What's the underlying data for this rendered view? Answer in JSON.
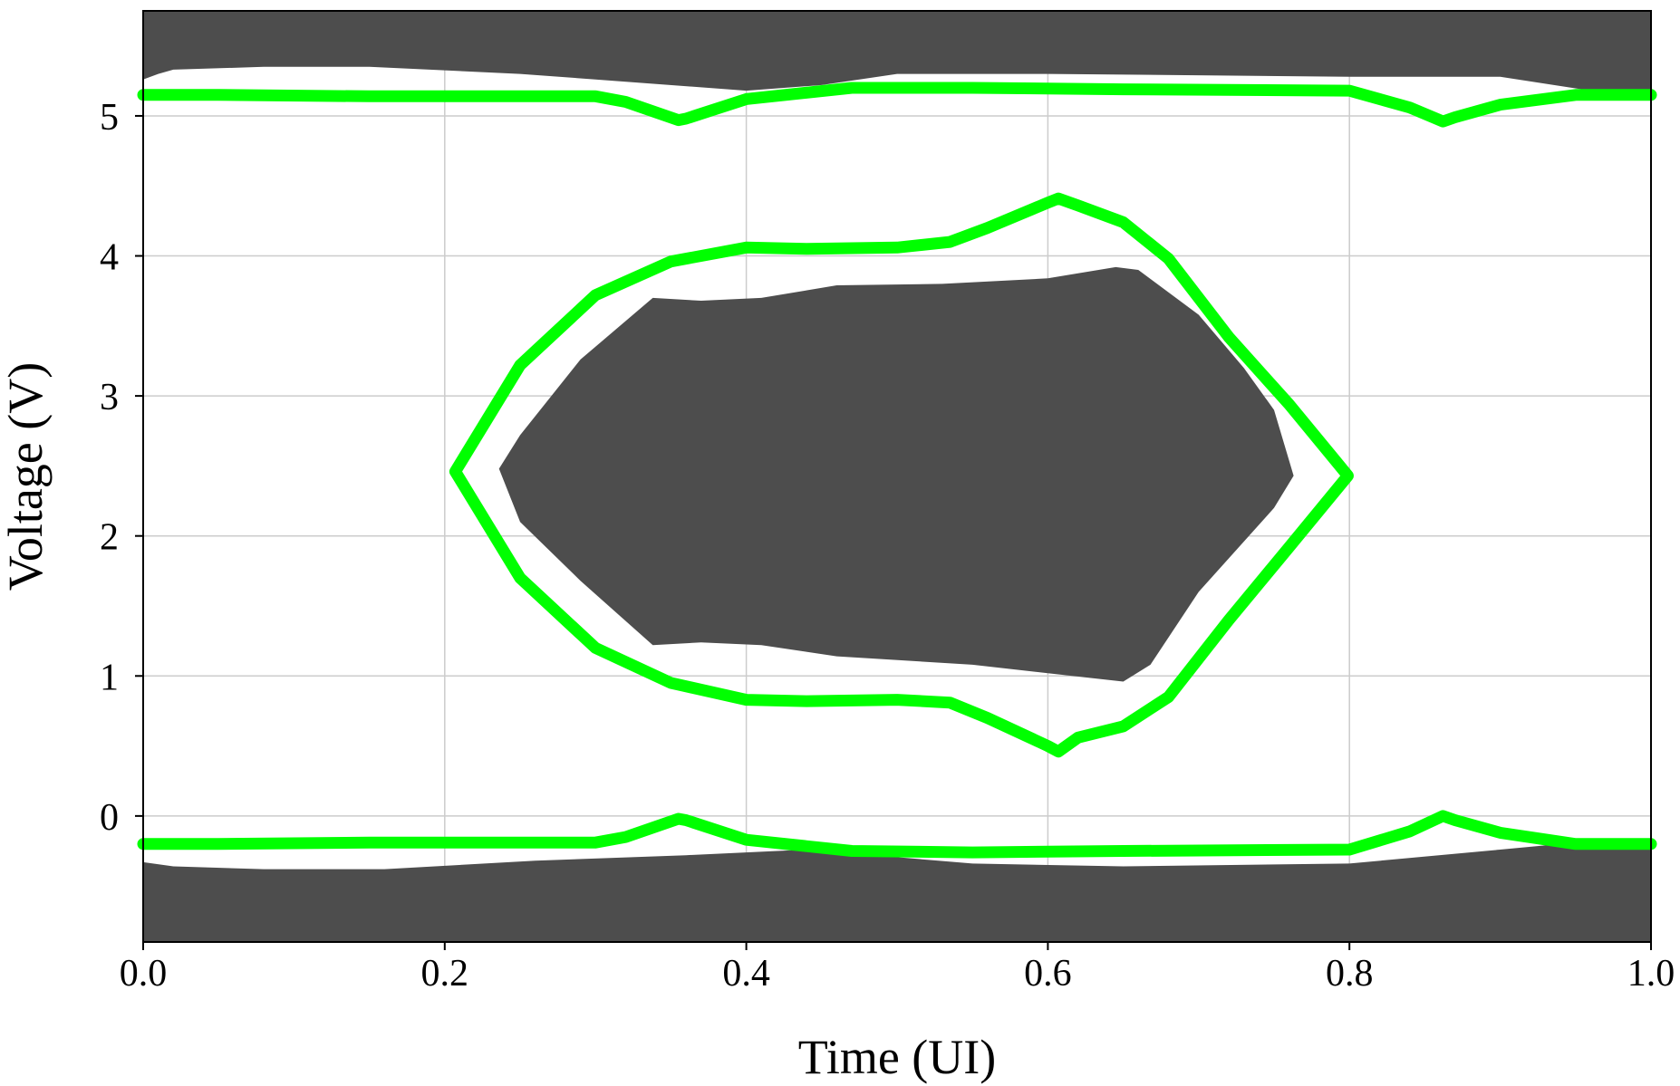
{
  "chart_data": {
    "type": "line",
    "title": "",
    "xlabel": "Time (UI)",
    "ylabel": "Voltage (V)",
    "xlim": [
      0.0,
      1.0
    ],
    "ylim": [
      -0.9,
      5.75
    ],
    "x_ticks": [
      0.0,
      0.2,
      0.4,
      0.6,
      0.8,
      1.0
    ],
    "x_tick_labels": [
      "0.0",
      "0.2",
      "0.4",
      "0.6",
      "0.8",
      "1.0"
    ],
    "y_ticks": [
      0,
      1,
      2,
      3,
      4,
      5
    ],
    "y_tick_labels": [
      "0",
      "1",
      "2",
      "3",
      "4",
      "5"
    ],
    "grid": true,
    "legend": "none",
    "colors": {
      "mask": "#4d4d4d",
      "contour": "#00ff00",
      "grid": "#cccccc",
      "frame": "#000000"
    },
    "masks": [
      {
        "region": "top",
        "points": [
          [
            0,
            5.75
          ],
          [
            1,
            5.75
          ],
          [
            1,
            5.18
          ],
          [
            0.96,
            5.18
          ],
          [
            0.9,
            5.28
          ],
          [
            0.8,
            5.28
          ],
          [
            0.6,
            5.3
          ],
          [
            0.5,
            5.3
          ],
          [
            0.45,
            5.22
          ],
          [
            0.4,
            5.18
          ],
          [
            0.3,
            5.26
          ],
          [
            0.25,
            5.3
          ],
          [
            0.15,
            5.35
          ],
          [
            0.08,
            5.35
          ],
          [
            0.02,
            5.33
          ],
          [
            0.01,
            5.3
          ],
          [
            0,
            5.26
          ]
        ]
      },
      {
        "region": "center",
        "points": [
          [
            0.236,
            2.48
          ],
          [
            0.25,
            2.72
          ],
          [
            0.29,
            3.26
          ],
          [
            0.338,
            3.7
          ],
          [
            0.37,
            3.68
          ],
          [
            0.41,
            3.7
          ],
          [
            0.46,
            3.79
          ],
          [
            0.53,
            3.8
          ],
          [
            0.6,
            3.84
          ],
          [
            0.645,
            3.92
          ],
          [
            0.66,
            3.9
          ],
          [
            0.7,
            3.58
          ],
          [
            0.73,
            3.2
          ],
          [
            0.75,
            2.9
          ],
          [
            0.763,
            2.43
          ],
          [
            0.75,
            2.2
          ],
          [
            0.7,
            1.6
          ],
          [
            0.668,
            1.08
          ],
          [
            0.65,
            0.96
          ],
          [
            0.6,
            1.02
          ],
          [
            0.55,
            1.08
          ],
          [
            0.46,
            1.14
          ],
          [
            0.41,
            1.22
          ],
          [
            0.37,
            1.24
          ],
          [
            0.338,
            1.22
          ],
          [
            0.29,
            1.68
          ],
          [
            0.25,
            2.1
          ]
        ]
      },
      {
        "region": "bottom",
        "points": [
          [
            0,
            -0.33
          ],
          [
            0.02,
            -0.36
          ],
          [
            0.08,
            -0.38
          ],
          [
            0.16,
            -0.38
          ],
          [
            0.26,
            -0.32
          ],
          [
            0.36,
            -0.28
          ],
          [
            0.44,
            -0.24
          ],
          [
            0.55,
            -0.34
          ],
          [
            0.65,
            -0.36
          ],
          [
            0.8,
            -0.34
          ],
          [
            0.9,
            -0.24
          ],
          [
            0.94,
            -0.2
          ],
          [
            1,
            -0.22
          ],
          [
            1,
            -0.9
          ],
          [
            0,
            -0.9
          ]
        ]
      }
    ],
    "series": [
      {
        "type": "upper-rail",
        "x": [
          0,
          0.05,
          0.15,
          0.3,
          0.32,
          0.355,
          0.36,
          0.4,
          0.47,
          0.55,
          0.65,
          0.8,
          0.84,
          0.862,
          0.87,
          0.9,
          0.95,
          1
        ],
        "y": [
          5.15,
          5.15,
          5.14,
          5.14,
          5.1,
          4.97,
          4.98,
          5.12,
          5.2,
          5.2,
          5.19,
          5.18,
          5.06,
          4.96,
          4.99,
          5.08,
          5.15,
          5.15
        ]
      },
      {
        "type": "lower-rail",
        "x": [
          0,
          0.05,
          0.15,
          0.3,
          0.32,
          0.355,
          0.36,
          0.4,
          0.47,
          0.55,
          0.65,
          0.8,
          0.84,
          0.862,
          0.87,
          0.9,
          0.95,
          1
        ],
        "y": [
          -0.2,
          -0.2,
          -0.19,
          -0.19,
          -0.15,
          -0.02,
          -0.03,
          -0.17,
          -0.25,
          -0.26,
          -0.25,
          -0.24,
          -0.11,
          0.0,
          -0.03,
          -0.12,
          -0.2,
          -0.2
        ]
      },
      {
        "type": "eye-contour",
        "x": [
          0.207,
          0.25,
          0.3,
          0.35,
          0.4,
          0.44,
          0.5,
          0.535,
          0.56,
          0.6,
          0.607,
          0.62,
          0.65,
          0.68,
          0.72,
          0.76,
          0.799,
          0.76,
          0.72,
          0.68,
          0.65,
          0.62,
          0.607,
          0.6,
          0.56,
          0.535,
          0.5,
          0.44,
          0.4,
          0.35,
          0.3,
          0.25
        ],
        "y": [
          2.46,
          3.22,
          3.72,
          3.96,
          4.06,
          4.05,
          4.06,
          4.1,
          4.2,
          4.38,
          4.41,
          4.36,
          4.24,
          3.98,
          3.42,
          2.94,
          2.43,
          1.92,
          1.4,
          0.85,
          0.64,
          0.56,
          0.46,
          0.5,
          0.7,
          0.81,
          0.83,
          0.82,
          0.83,
          0.95,
          1.2,
          1.7
        ]
      }
    ]
  }
}
